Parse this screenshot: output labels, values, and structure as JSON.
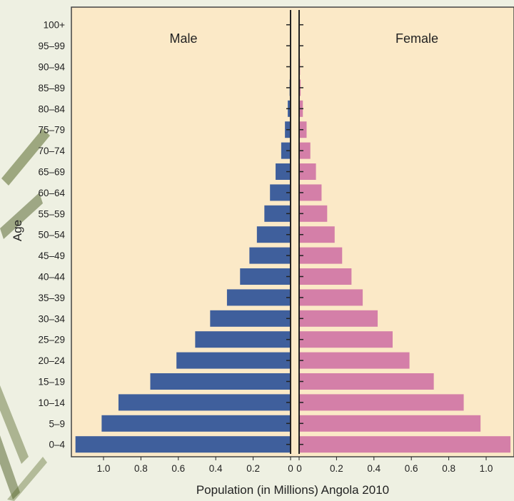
{
  "chart_data": {
    "type": "bar",
    "orientation": "horizontal",
    "subtype": "population-pyramid",
    "categories": [
      "0–4",
      "5–9",
      "10–14",
      "15–19",
      "20–24",
      "25–29",
      "30–34",
      "35–39",
      "40–44",
      "45–49",
      "50–54",
      "55–59",
      "60–64",
      "65–69",
      "70–74",
      "75–79",
      "80–84",
      "85–89",
      "90–94",
      "95–99",
      "100+"
    ],
    "series": [
      {
        "name": "Male",
        "color": "#3f5f9c",
        "values": [
          1.15,
          1.01,
          0.92,
          0.75,
          0.61,
          0.51,
          0.43,
          0.34,
          0.27,
          0.22,
          0.18,
          0.14,
          0.11,
          0.08,
          0.05,
          0.03,
          0.015,
          0.005,
          0.003,
          0.002,
          0.001
        ]
      },
      {
        "name": "Female",
        "color": "#d47fa8",
        "values": [
          1.13,
          0.97,
          0.88,
          0.72,
          0.59,
          0.5,
          0.42,
          0.34,
          0.28,
          0.23,
          0.19,
          0.15,
          0.12,
          0.09,
          0.06,
          0.04,
          0.02,
          0.008,
          0.005,
          0.003,
          0.002
        ]
      }
    ],
    "xlabel": "Population (in Millions) Angola 2010",
    "ylabel": "Age",
    "xticks": [
      "1.0",
      "0.8",
      "0.6",
      "0.4",
      "0.2",
      "0",
      "0",
      "0.2",
      "0.4",
      "0.6",
      "0.8",
      "1.0"
    ],
    "xlim": [
      0,
      1.2
    ],
    "grid": false,
    "legend": "none"
  },
  "colors": {
    "plot_background": "#fbe9c7",
    "border": "#444444",
    "axis_line": "#222222",
    "page_background": "#eef0e2"
  }
}
